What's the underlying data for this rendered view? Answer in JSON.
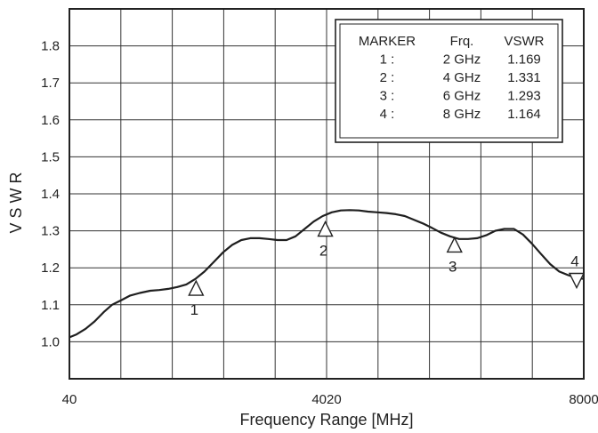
{
  "chart_data": {
    "type": "line",
    "title": "",
    "xlabel": "Frequency Range [MHz]",
    "ylabel": "V S W R",
    "xlim": [
      40,
      8000
    ],
    "ylim": [
      0.9,
      1.9
    ],
    "x_tick_labels": [
      "40",
      "4020",
      "8000"
    ],
    "y_ticks": [
      1.0,
      1.1,
      1.2,
      1.3,
      1.4,
      1.5,
      1.6,
      1.7,
      1.8
    ],
    "y_tick_labels": [
      "1.0",
      "1.1",
      "1.2",
      "1.3",
      "1.4",
      "1.5",
      "1.6",
      "1.7",
      "1.8"
    ],
    "grid": true,
    "series": [
      {
        "x": [
          40,
          150,
          290,
          430,
          570,
          700,
          850,
          980,
          1130,
          1290,
          1430,
          1570,
          1710,
          1850,
          1990,
          2130,
          2270,
          2420,
          2560,
          2700,
          2840,
          2980,
          3120,
          3260,
          3400,
          3540,
          3680,
          3820,
          3960,
          4100,
          4240,
          4380,
          4520,
          4660,
          4810,
          4950,
          5090,
          5230,
          5370,
          5510,
          5650,
          5790,
          5930,
          6070,
          6210,
          6350,
          6490,
          6630,
          6770,
          6920,
          7060,
          7200,
          7340,
          7480,
          7620,
          7760,
          7900,
          8000
        ],
        "values": [
          1.012,
          1.02,
          1.035,
          1.055,
          1.08,
          1.1,
          1.113,
          1.125,
          1.132,
          1.138,
          1.14,
          1.143,
          1.148,
          1.155,
          1.17,
          1.19,
          1.215,
          1.242,
          1.262,
          1.275,
          1.28,
          1.28,
          1.278,
          1.275,
          1.275,
          1.285,
          1.305,
          1.325,
          1.34,
          1.35,
          1.355,
          1.356,
          1.355,
          1.352,
          1.35,
          1.348,
          1.345,
          1.34,
          1.33,
          1.32,
          1.308,
          1.295,
          1.285,
          1.278,
          1.278,
          1.28,
          1.288,
          1.3,
          1.305,
          1.305,
          1.29,
          1.265,
          1.237,
          1.21,
          1.19,
          1.18,
          1.172,
          1.17
        ]
      }
    ],
    "markers": [
      {
        "id": "1",
        "x": 2000,
        "value": 1.145,
        "label_side": "below",
        "symbol": "up"
      },
      {
        "id": "2",
        "x": 4000,
        "value": 1.305,
        "label_side": "below",
        "symbol": "up"
      },
      {
        "id": "3",
        "x": 6000,
        "value": 1.262,
        "label_side": "below",
        "symbol": "up"
      },
      {
        "id": "4",
        "x": 8000,
        "value": 1.168,
        "label_side": "above",
        "symbol": "down"
      }
    ],
    "legend_table": {
      "location": "top-right",
      "headers": [
        "MARKER",
        "Frq.",
        "VSWR"
      ],
      "rows": [
        [
          "1 :",
          "2 GHz",
          "1.169"
        ],
        [
          "2 :",
          "4 GHz",
          "1.331"
        ],
        [
          "3 :",
          "6 GHz",
          "1.293"
        ],
        [
          "4 :",
          "8 GHz",
          "1.164"
        ]
      ]
    }
  }
}
